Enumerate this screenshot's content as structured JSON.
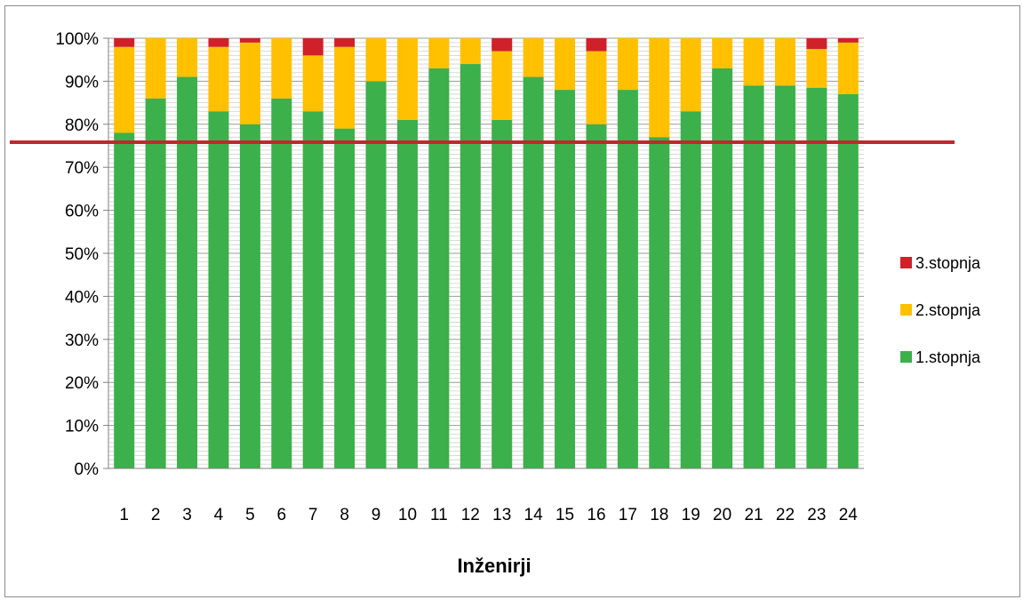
{
  "chart_data": {
    "type": "bar",
    "stacked": true,
    "percent_axis": true,
    "title": "",
    "xlabel": "Inženirji",
    "ylabel": "",
    "ylim": [
      0,
      100
    ],
    "y_ticks": [
      "0%",
      "10%",
      "20%",
      "30%",
      "40%",
      "50%",
      "60%",
      "70%",
      "80%",
      "90%",
      "100%"
    ],
    "categories": [
      "1",
      "2",
      "3",
      "4",
      "5",
      "6",
      "7",
      "8",
      "9",
      "10",
      "11",
      "12",
      "13",
      "14",
      "15",
      "16",
      "17",
      "18",
      "19",
      "20",
      "21",
      "22",
      "23",
      "24"
    ],
    "series": [
      {
        "name": "1.stopnja",
        "color": "#3cb04a",
        "values": [
          78,
          86,
          91,
          83,
          80,
          86,
          83,
          79,
          90,
          81,
          93,
          94,
          81,
          91,
          88,
          80,
          88,
          77,
          83,
          93,
          89,
          89,
          88.5,
          87
        ]
      },
      {
        "name": "2.stopnja",
        "color": "#ffc000",
        "values": [
          20,
          14,
          9,
          15,
          19,
          14,
          13,
          19,
          10,
          19,
          7,
          6,
          16,
          9,
          12,
          17,
          12,
          23,
          17,
          7,
          11,
          11,
          9,
          12
        ]
      },
      {
        "name": "3.stopnja",
        "color": "#d0202a",
        "values": [
          2,
          0,
          0,
          2,
          1,
          0,
          4,
          2,
          0,
          0,
          0,
          0,
          3,
          0,
          0,
          3,
          0,
          0,
          0,
          0,
          0,
          0,
          2.5,
          1
        ]
      }
    ],
    "reference_line": {
      "value": 75,
      "color": "#c0282c"
    },
    "legend_order": [
      "3.stopnja",
      "2.stopnja",
      "1.stopnja"
    ],
    "legend_position": "right",
    "grid": true
  }
}
